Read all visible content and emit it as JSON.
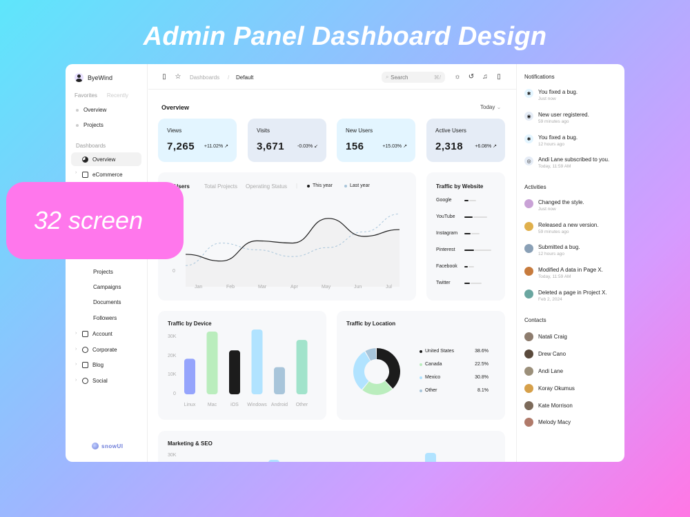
{
  "hero_title": "Admin Panel  Dashboard Design",
  "badge": "32 screen",
  "sidebar": {
    "user": "ByeWind",
    "tabs": [
      "Favorites",
      "Recently"
    ],
    "favorites": [
      "Overview",
      "Projects"
    ],
    "section": "Dashboards",
    "nav": [
      "Overview",
      "eCommerce"
    ],
    "sub": [
      "Projects",
      "Campaigns",
      "Documents",
      "Followers"
    ],
    "groups": [
      "Account",
      "Corporate",
      "Blog",
      "Social"
    ],
    "logo": "snowUI"
  },
  "header": {
    "crumb1": "Dashboards",
    "sep": "/",
    "crumb2": "Default",
    "search_placeholder": "Search",
    "shortcut": "⌘/"
  },
  "overview": {
    "title": "Overview",
    "range": "Today",
    "stats": [
      {
        "label": "Views",
        "value": "7,265",
        "change": "+11.02%",
        "bg": "#e3f5ff"
      },
      {
        "label": "Visits",
        "value": "3,671",
        "change": "-0.03%",
        "bg": "#e5ecf6"
      },
      {
        "label": "New Users",
        "value": "156",
        "change": "+15.03%",
        "bg": "#e3f5ff"
      },
      {
        "label": "Active Users",
        "value": "2,318",
        "change": "+6.08%",
        "bg": "#e5ecf6"
      }
    ]
  },
  "users_chart": {
    "tabs": [
      "tal Users",
      "Total Projects",
      "Operating Status"
    ],
    "sep": "|",
    "legend": [
      "This year",
      "Last year"
    ],
    "zero": "0",
    "months": [
      "Jan",
      "Feb",
      "Mar",
      "Apr",
      "May",
      "Jun",
      "Jul"
    ]
  },
  "traffic_website": {
    "title": "Traffic by Website",
    "sites": [
      "Google",
      "YouTube",
      "Instagram",
      "Pinterest",
      "Facebook",
      "Twitter"
    ]
  },
  "traffic_device": {
    "title": "Traffic by Device",
    "yticks": [
      "30K",
      "20K",
      "10K",
      "0"
    ]
  },
  "traffic_location": {
    "title": "Traffic by Location",
    "rows": [
      {
        "name": "United States",
        "pct": "38.6%",
        "color": "#1c1c1c"
      },
      {
        "name": "Canada",
        "pct": "22.5%",
        "color": "#baedbd"
      },
      {
        "name": "Mexico",
        "pct": "30.8%",
        "color": "#b1e3ff"
      },
      {
        "name": "Other",
        "pct": "8.1%",
        "color": "#a8c5da"
      }
    ]
  },
  "marketing": {
    "title": "Marketing & SEO",
    "ytick": "30K"
  },
  "chart_data": [
    {
      "type": "line",
      "x": [
        "Jan",
        "Feb",
        "Mar",
        "Apr",
        "May",
        "Jun",
        "Jul"
      ],
      "series": [
        {
          "name": "This year",
          "values": [
            12,
            9,
            18,
            17,
            28,
            20,
            23
          ]
        },
        {
          "name": "Last year",
          "values": [
            7,
            17,
            14,
            11,
            15,
            22,
            30
          ]
        }
      ],
      "ylim": [
        0,
        35
      ],
      "ytick_labels": [
        "0"
      ]
    },
    {
      "type": "bar",
      "title": "Traffic by Device",
      "categories": [
        "Linux",
        "Mac",
        "iOS",
        "Windows",
        "Android",
        "Other"
      ],
      "values": [
        17,
        30,
        21,
        31,
        13,
        26
      ],
      "colors": [
        "#95a4fc",
        "#baedbd",
        "#1c1c1c",
        "#b1e3ff",
        "#a8c5da",
        "#a1e3cb"
      ],
      "ylim": [
        0,
        30
      ],
      "ytick_labels": [
        "0",
        "10K",
        "20K",
        "30K"
      ]
    },
    {
      "type": "pie",
      "title": "Traffic by Location",
      "categories": [
        "United States",
        "Canada",
        "Mexico",
        "Other"
      ],
      "values": [
        38.6,
        22.5,
        30.8,
        8.1
      ],
      "colors": [
        "#1c1c1c",
        "#baedbd",
        "#b1e3ff",
        "#a8c5da"
      ]
    }
  ],
  "notifications": {
    "title": "Notifications",
    "items": [
      {
        "text": "You fixed a bug.",
        "time": "Just now",
        "bg": "#e3f5ff"
      },
      {
        "text": "New user registered.",
        "time": "59 minutes ago",
        "bg": "#e5ecf6"
      },
      {
        "text": "You fixed a bug.",
        "time": "12 hours ago",
        "bg": "#e3f5ff"
      },
      {
        "text": "Andi Lane subscribed to you.",
        "time": "Today, 11:59 AM",
        "bg": "#e5ecf6"
      }
    ]
  },
  "activities": {
    "title": "Activities",
    "items": [
      {
        "text": "Changed the style.",
        "time": "Just now",
        "bg": "#c9a2d6"
      },
      {
        "text": "Released a new version.",
        "time": "59 minutes ago",
        "bg": "#e0b04c"
      },
      {
        "text": "Submitted a bug.",
        "time": "12 hours ago",
        "bg": "#8aa0b6"
      },
      {
        "text": "Modified A data in Page X.",
        "time": "Today, 11:59 AM",
        "bg": "#c77b3d"
      },
      {
        "text": "Deleted a page in Project X.",
        "time": "Feb 2, 2024",
        "bg": "#6aa6a0"
      }
    ]
  },
  "contacts": {
    "title": "Contacts",
    "items": [
      {
        "name": "Natali Craig",
        "bg": "#8d7c6e"
      },
      {
        "name": "Drew Cano",
        "bg": "#5a4a3c"
      },
      {
        "name": "Andi Lane",
        "bg": "#9b8f7a"
      },
      {
        "name": "Koray Okumus",
        "bg": "#d6a04a"
      },
      {
        "name": "Kate Morrison",
        "bg": "#7c6a5a"
      },
      {
        "name": "Melody Macy",
        "bg": "#b07a6a"
      }
    ]
  }
}
